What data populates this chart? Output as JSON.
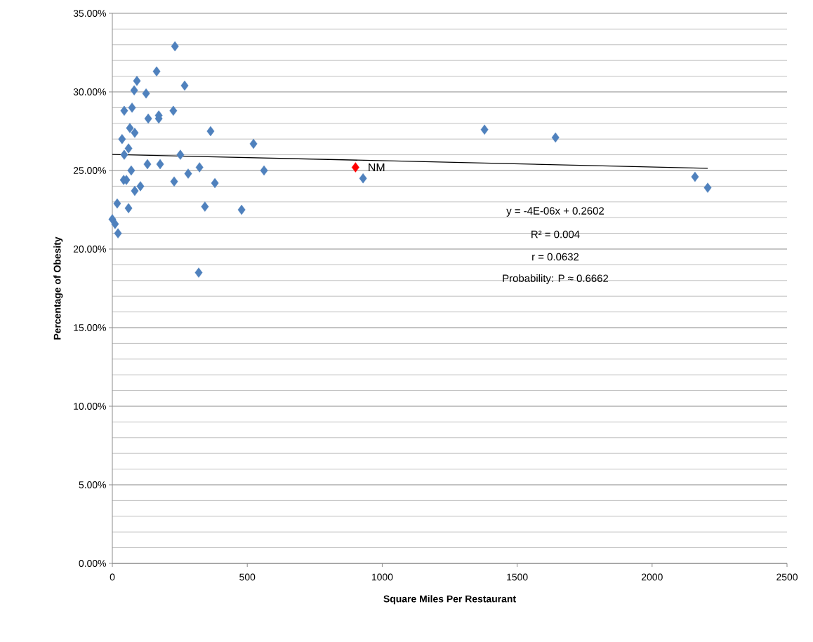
{
  "chart_data": {
    "type": "scatter",
    "xlabel": "Square Miles Per Restaurant",
    "ylabel": "Percentage of Obesity",
    "xlim": [
      0,
      2500
    ],
    "xticks": [
      0,
      500,
      1000,
      1500,
      2000,
      2500
    ],
    "ylim": [
      0,
      35
    ],
    "yticks": [
      {
        "value": 0,
        "label": "0.00%"
      },
      {
        "value": 5,
        "label": "5.00%"
      },
      {
        "value": 10,
        "label": "10.00%"
      },
      {
        "value": 15,
        "label": "15.00%"
      },
      {
        "value": 20,
        "label": "20.00%"
      },
      {
        "value": 25,
        "label": "25.00%"
      },
      {
        "value": 30,
        "label": "30.00%"
      },
      {
        "value": 35,
        "label": "35.00%"
      }
    ],
    "grid": "y",
    "marker": "diamond",
    "series": [
      {
        "color": "#4f81bd",
        "x": [
          0,
          10,
          21,
          18,
          60,
          42,
          52,
          70,
          83,
          104,
          44,
          60,
          36,
          65,
          83,
          44,
          73,
          81,
          91,
          125,
          133,
          164,
          172,
          172,
          226,
          232,
          268,
          130,
          177,
          252,
          281,
          229,
          323,
          364,
          380,
          343,
          320,
          479,
          523,
          562,
          929,
          2159,
          2206,
          1379,
          1642
        ],
        "values": [
          21.9,
          21.6,
          21.0,
          22.9,
          22.6,
          24.4,
          24.4,
          25.0,
          23.7,
          24.0,
          26.0,
          26.4,
          27.0,
          27.7,
          27.4,
          28.8,
          29.0,
          30.1,
          30.7,
          29.9,
          28.3,
          31.3,
          28.5,
          28.3,
          28.8,
          32.9,
          30.4,
          25.4,
          25.4,
          26.0,
          24.8,
          24.3,
          25.2,
          27.5,
          24.2,
          22.7,
          18.5,
          22.5,
          26.7,
          25.0,
          24.5,
          24.6,
          23.9,
          27.6,
          27.1
        ]
      },
      {
        "name": "NM",
        "color": "#ff0000",
        "x": [
          901
        ],
        "values": [
          25.2
        ]
      },
      {
        "type": "line",
        "color": "#000000",
        "marker": "none",
        "x": [
          0,
          2206
        ],
        "values": [
          26.02,
          25.14
        ]
      }
    ],
    "annotations": [
      "y = -4E-06x + 0.2602",
      "R² = 0.004",
      "r = 0.0632",
      "Probability:  P ≈ 0.6662"
    ]
  }
}
